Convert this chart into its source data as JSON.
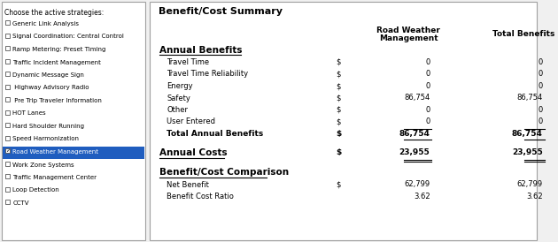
{
  "title": "Benefit/Cost Summary",
  "left_panel_header": "Choose the active strategies:",
  "left_panel_items": [
    {
      "text": "Generic Link Analysis",
      "checked": false,
      "highlighted": false
    },
    {
      "text": "Signal Coordination: Central Control",
      "checked": false,
      "highlighted": false
    },
    {
      "text": "Ramp Metering: Preset Timing",
      "checked": false,
      "highlighted": false
    },
    {
      "text": "Traffic Incident Management",
      "checked": false,
      "highlighted": false
    },
    {
      "text": "Dynamic Message Sign",
      "checked": false,
      "highlighted": false
    },
    {
      "text": " Highway Advisory Radio",
      "checked": false,
      "highlighted": false
    },
    {
      "text": " Pre Trip Traveler Information",
      "checked": false,
      "highlighted": false
    },
    {
      "text": "HOT Lanes",
      "checked": false,
      "highlighted": false
    },
    {
      "text": "Hard Shoulder Running",
      "checked": false,
      "highlighted": false
    },
    {
      "text": "Speed Harmonization",
      "checked": false,
      "highlighted": false
    },
    {
      "text": "Road Weather Management",
      "checked": true,
      "highlighted": true
    },
    {
      "text": "Work Zone Systems",
      "checked": false,
      "highlighted": false
    },
    {
      "text": "Traffic Management Center",
      "checked": false,
      "highlighted": false
    },
    {
      "text": "Loop Detection",
      "checked": false,
      "highlighted": false
    },
    {
      "text": "CCTV",
      "checked": false,
      "highlighted": false
    }
  ],
  "col_header1": "Road Weather",
  "col_header2": "Management",
  "col_header3": "Total Benefits",
  "section1_header": "Annual Benefits",
  "rows": [
    {
      "label": "Travel Time",
      "dollar": "$",
      "val1": "0",
      "val2": "0"
    },
    {
      "label": "Travel Time Reliability",
      "dollar": "$",
      "val1": "0",
      "val2": "0"
    },
    {
      "label": "Energy",
      "dollar": "$",
      "val1": "0",
      "val2": "0"
    },
    {
      "label": "Safety",
      "dollar": "$",
      "val1": "86,754",
      "val2": "86,754"
    },
    {
      "label": "Other",
      "dollar": "$",
      "val1": "0",
      "val2": "0"
    },
    {
      "label": "User Entered",
      "dollar": "$",
      "val1": "0",
      "val2": "0"
    },
    {
      "label": "Total Annual Benefits",
      "dollar": "$",
      "val1": "86,754",
      "val2": "86,754",
      "bold": true,
      "underline": true
    }
  ],
  "section2_header": "Annual Costs",
  "costs_row": {
    "dollar": "$",
    "val1": "23,955",
    "val2": "23,955"
  },
  "section3_header": "Benefit/Cost Comparison",
  "comparison_rows": [
    {
      "label": "Net Benefit",
      "dollar": "$",
      "val1": "62,799",
      "val2": "62,799"
    },
    {
      "label": "Benefit Cost Ratio",
      "dollar": "",
      "val1": "3.62",
      "val2": "3.62"
    }
  ],
  "bg_color": "#f0f0f0",
  "panel_bg": "#ffffff",
  "highlight_bg": "#1f5dbf",
  "highlight_fg": "#ffffff",
  "border_color": "#a0a0a0",
  "text_color": "#000000",
  "header_color": "#1f3f7f"
}
